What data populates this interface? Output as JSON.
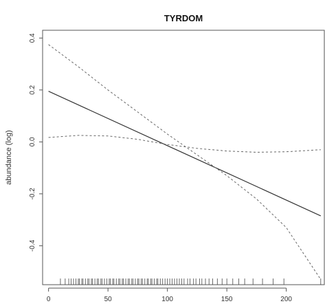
{
  "chart_data": {
    "type": "line",
    "title": "TYRDOM",
    "xlabel": "",
    "ylabel": "abundance (log)",
    "xlim": [
      -5,
      232
    ],
    "ylim": [
      -0.55,
      0.43
    ],
    "x_ticks": [
      0,
      50,
      100,
      150,
      200
    ],
    "y_ticks": [
      -0.4,
      -0.2,
      0.0,
      0.2,
      0.4
    ],
    "x_tick_labels": [
      "0",
      "50",
      "100",
      "150",
      "200"
    ],
    "y_tick_labels": [
      "-0.4",
      "-0.2",
      "0.0",
      "0.2",
      "0.4"
    ],
    "grid": false,
    "series": [
      {
        "style": "solid",
        "x": [
          0,
          229
        ],
        "y": [
          0.195,
          -0.285
        ]
      },
      {
        "style": "dashed",
        "x": [
          0,
          25,
          50,
          75,
          100,
          125,
          150,
          175,
          200,
          229
        ],
        "y": [
          0.375,
          0.29,
          0.2,
          0.115,
          0.03,
          -0.05,
          -0.13,
          -0.22,
          -0.33,
          -0.53
        ]
      },
      {
        "style": "dashed",
        "x": [
          0,
          25,
          50,
          75,
          100,
          125,
          150,
          175,
          200,
          229
        ],
        "y": [
          0.017,
          0.025,
          0.023,
          0.01,
          -0.01,
          -0.025,
          -0.035,
          -0.04,
          -0.038,
          -0.03
        ]
      }
    ],
    "rug_x": [
      10,
      14,
      17,
      19,
      21,
      23,
      25,
      26,
      28,
      29,
      31,
      33,
      34,
      36,
      37,
      39,
      41,
      42,
      44,
      45,
      47,
      49,
      51,
      52,
      54,
      55,
      57,
      59,
      60,
      62,
      63,
      65,
      67,
      68,
      70,
      71,
      73,
      75,
      76,
      78,
      79,
      81,
      83,
      84,
      86,
      87,
      89,
      91,
      92,
      94,
      96,
      98,
      100,
      102,
      104,
      106,
      108,
      110,
      112,
      114,
      117,
      119,
      122,
      124,
      127,
      129,
      132,
      135,
      138,
      142,
      146,
      150,
      155,
      160,
      165,
      172,
      180,
      189,
      198,
      229
    ]
  }
}
